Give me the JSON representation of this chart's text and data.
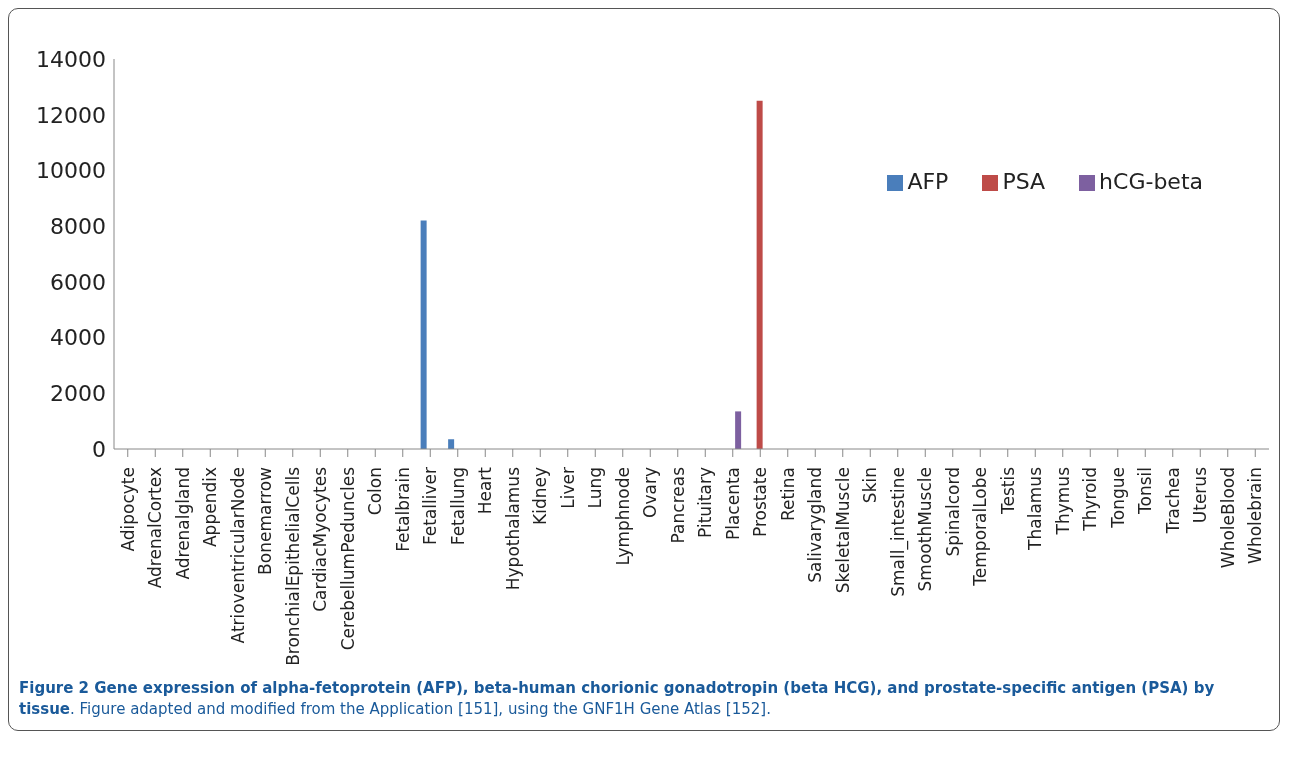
{
  "chart_data": {
    "type": "bar",
    "categories": [
      "Adipocyte",
      "AdrenalCortex",
      "Adrenalgland",
      "Appendix",
      "AtrioventricularNode",
      "Bonemarrow",
      "BronchialEpithelialCells",
      "CardiacMyocytes",
      "CerebellumPeduncles",
      "Colon",
      "Fetalbrain",
      "Fetalliver",
      "Fetallung",
      "Heart",
      "Hypothalamus",
      "Kidney",
      "Liver",
      "Lung",
      "Lymphnode",
      "Ovary",
      "Pancreas",
      "Pituitary",
      "Placenta",
      "Prostate",
      "Retina",
      "Salivarygland",
      "SkeletalMuscle",
      "Skin",
      "Small_intestine",
      "SmoothMuscle",
      "Spinalcord",
      "TemporalLobe",
      "Testis",
      "Thalamus",
      "Thymus",
      "Thyroid",
      "Tongue",
      "Tonsil",
      "Trachea",
      "Uterus",
      "WholeBlood",
      "Wholebrain"
    ],
    "series": [
      {
        "name": "AFP",
        "color": "#4a7ebb",
        "values": [
          0,
          0,
          0,
          0,
          0,
          0,
          0,
          0,
          0,
          0,
          0,
          8200,
          350,
          0,
          0,
          0,
          0,
          0,
          0,
          0,
          0,
          0,
          0,
          0,
          0,
          0,
          0,
          0,
          0,
          0,
          0,
          0,
          0,
          0,
          0,
          0,
          0,
          0,
          0,
          0,
          0,
          0
        ]
      },
      {
        "name": "PSA",
        "color": "#be4b48",
        "values": [
          0,
          0,
          0,
          0,
          0,
          0,
          0,
          0,
          0,
          0,
          0,
          0,
          0,
          0,
          0,
          0,
          0,
          0,
          0,
          0,
          0,
          0,
          0,
          12500,
          0,
          0,
          0,
          0,
          0,
          0,
          0,
          0,
          0,
          0,
          0,
          0,
          0,
          0,
          0,
          0,
          0,
          0
        ]
      },
      {
        "name": "hCG-beta",
        "color": "#7d60a0",
        "values": [
          0,
          0,
          0,
          0,
          0,
          0,
          0,
          0,
          0,
          0,
          0,
          0,
          0,
          0,
          0,
          0,
          0,
          0,
          0,
          0,
          0,
          0,
          1350,
          0,
          0,
          0,
          0,
          0,
          0,
          0,
          0,
          0,
          0,
          0,
          0,
          0,
          0,
          0,
          0,
          0,
          0,
          0
        ]
      }
    ],
    "ylim": [
      0,
      14000
    ],
    "yticks": [
      0,
      2000,
      4000,
      6000,
      8000,
      10000,
      12000,
      14000
    ],
    "grid": false,
    "legend": "top right",
    "annotations": [
      "Figure 2 Gene expression of alpha-fetoprotein (AFP), beta-human chorionic gonadotropin (beta HCG), and prostate-specific antigen (PSA) by tissue",
      ". Figure adapted and modified from the Application [151], using the GNF1H Gene Atlas [152]."
    ]
  }
}
